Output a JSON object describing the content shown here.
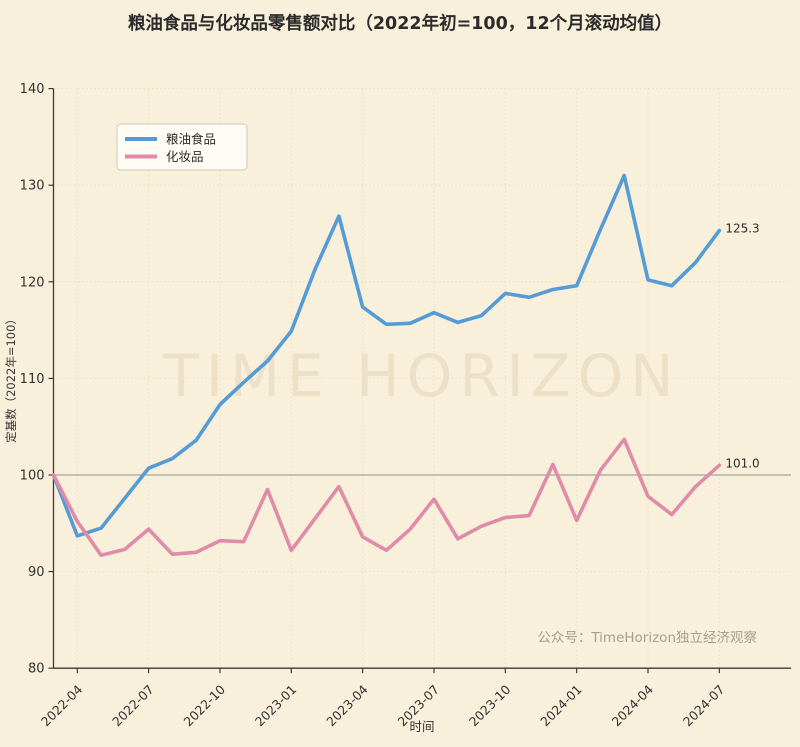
{
  "page": {
    "watermark": "TIME HORIZON",
    "credit": "公众号：TimeHorizon独立经济观察",
    "background_color": "#f9f0dc"
  },
  "chart_data": {
    "type": "line",
    "title": "粮油食品与化妆品零售额对比（2022年初=100，12个月滚动均值）",
    "xlabel": "时间",
    "ylabel": "定基数（2022年=100）",
    "ylim": [
      80,
      140
    ],
    "yticks": [
      80,
      90,
      100,
      110,
      120,
      130,
      140
    ],
    "grid": true,
    "reference_line": 100,
    "legend_position": "upper-left",
    "x": [
      "2022-03",
      "2022-04",
      "2022-05",
      "2022-06",
      "2022-07",
      "2022-08",
      "2022-09",
      "2022-10",
      "2022-11",
      "2022-12",
      "2023-01",
      "2023-02",
      "2023-03",
      "2023-04",
      "2023-05",
      "2023-06",
      "2023-07",
      "2023-08",
      "2023-09",
      "2023-10",
      "2023-11",
      "2023-12",
      "2024-01",
      "2024-02",
      "2024-03",
      "2024-04",
      "2024-05",
      "2024-06",
      "2024-07"
    ],
    "xtick_labels": [
      "2022-04",
      "2022-07",
      "2022-10",
      "2023-01",
      "2023-04",
      "2023-07",
      "2023-10",
      "2024-01",
      "2024-04",
      "2024-07"
    ],
    "series": [
      {
        "name": "粮油食品",
        "color": "#559cd6",
        "end_label": "125.3",
        "values": [
          100.0,
          93.7,
          94.5,
          97.6,
          100.7,
          101.7,
          103.6,
          107.3,
          109.6,
          111.8,
          114.9,
          121.3,
          126.8,
          117.4,
          115.6,
          115.7,
          116.8,
          115.8,
          116.5,
          118.8,
          118.4,
          119.2,
          119.6,
          125.4,
          131.0,
          120.2,
          119.6,
          122.0,
          125.3
        ]
      },
      {
        "name": "化妆品",
        "color": "#e08ca8",
        "end_label": "101.0",
        "values": [
          100.0,
          95.2,
          91.7,
          92.3,
          94.4,
          91.8,
          92.0,
          93.2,
          93.1,
          98.5,
          92.2,
          95.5,
          98.8,
          93.6,
          92.2,
          94.4,
          97.5,
          93.4,
          94.7,
          95.6,
          95.8,
          101.1,
          95.3,
          100.5,
          103.7,
          97.8,
          95.9,
          98.8,
          101.0
        ]
      }
    ]
  }
}
